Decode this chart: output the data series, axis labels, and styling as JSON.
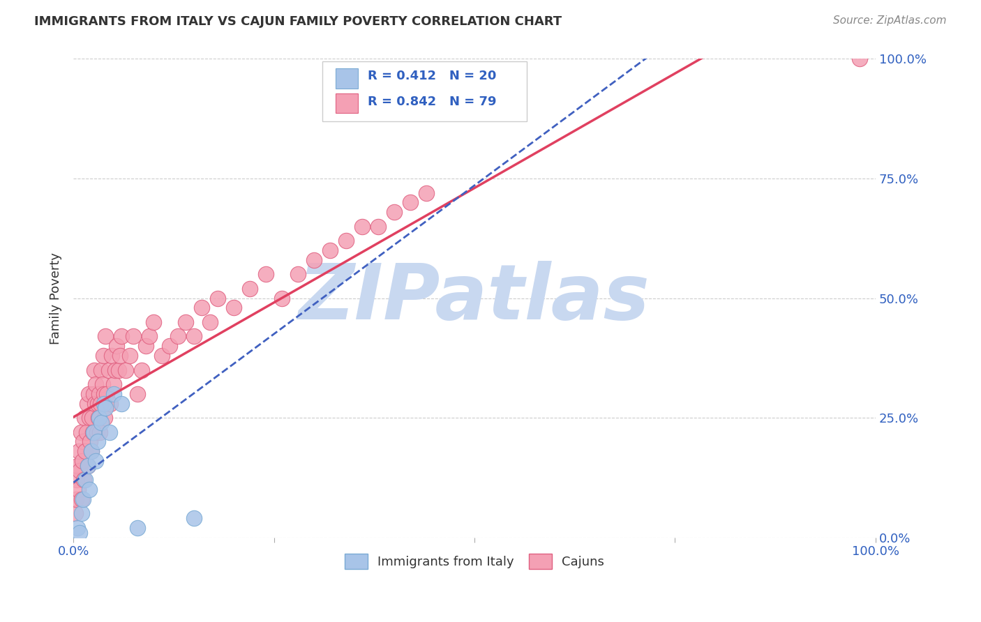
{
  "title": "IMMIGRANTS FROM ITALY VS CAJUN FAMILY POVERTY CORRELATION CHART",
  "source": "Source: ZipAtlas.com",
  "ylabel": "Family Poverty",
  "xlim": [
    0,
    1
  ],
  "ylim": [
    0,
    1
  ],
  "grid_color": "#cccccc",
  "background_color": "#ffffff",
  "watermark_text": "ZIPatlas",
  "watermark_color": "#c8d8f0",
  "italy_color": "#a8c4e8",
  "italy_edge_color": "#7aaad4",
  "cajun_color": "#f4a0b4",
  "cajun_edge_color": "#e06080",
  "italy_R": 0.412,
  "italy_N": 20,
  "cajun_R": 0.842,
  "cajun_N": 79,
  "italy_line_color": "#4060c0",
  "cajun_line_color": "#e04060",
  "tick_label_color": "#3060c0",
  "title_color": "#333333",
  "source_color": "#888888",
  "legend_border_color": "#cccccc",
  "italy_points_x": [
    0.005,
    0.008,
    0.01,
    0.012,
    0.015,
    0.018,
    0.02,
    0.022,
    0.025,
    0.028,
    0.03,
    0.032,
    0.035,
    0.038,
    0.04,
    0.045,
    0.05,
    0.06,
    0.08,
    0.15
  ],
  "italy_points_y": [
    0.02,
    0.01,
    0.05,
    0.08,
    0.12,
    0.15,
    0.1,
    0.18,
    0.22,
    0.16,
    0.2,
    0.25,
    0.24,
    0.28,
    0.27,
    0.22,
    0.3,
    0.28,
    0.02,
    0.04
  ],
  "cajun_points_x": [
    0.002,
    0.003,
    0.004,
    0.005,
    0.006,
    0.007,
    0.008,
    0.009,
    0.01,
    0.011,
    0.012,
    0.013,
    0.014,
    0.015,
    0.016,
    0.017,
    0.018,
    0.019,
    0.02,
    0.021,
    0.022,
    0.023,
    0.024,
    0.025,
    0.026,
    0.027,
    0.028,
    0.029,
    0.03,
    0.031,
    0.032,
    0.033,
    0.034,
    0.035,
    0.036,
    0.037,
    0.038,
    0.039,
    0.04,
    0.042,
    0.044,
    0.046,
    0.048,
    0.05,
    0.052,
    0.054,
    0.056,
    0.058,
    0.06,
    0.065,
    0.07,
    0.075,
    0.08,
    0.085,
    0.09,
    0.095,
    0.1,
    0.11,
    0.12,
    0.13,
    0.14,
    0.15,
    0.16,
    0.17,
    0.18,
    0.2,
    0.22,
    0.24,
    0.26,
    0.28,
    0.3,
    0.32,
    0.34,
    0.36,
    0.38,
    0.4,
    0.42,
    0.44,
    0.98
  ],
  "cajun_points_y": [
    0.05,
    0.08,
    0.12,
    0.15,
    0.1,
    0.18,
    0.14,
    0.22,
    0.08,
    0.16,
    0.2,
    0.12,
    0.25,
    0.18,
    0.22,
    0.28,
    0.15,
    0.3,
    0.25,
    0.2,
    0.18,
    0.25,
    0.22,
    0.3,
    0.35,
    0.28,
    0.32,
    0.22,
    0.28,
    0.25,
    0.3,
    0.22,
    0.28,
    0.35,
    0.32,
    0.38,
    0.3,
    0.25,
    0.42,
    0.3,
    0.35,
    0.28,
    0.38,
    0.32,
    0.35,
    0.4,
    0.35,
    0.38,
    0.42,
    0.35,
    0.38,
    0.42,
    0.3,
    0.35,
    0.4,
    0.42,
    0.45,
    0.38,
    0.4,
    0.42,
    0.45,
    0.42,
    0.48,
    0.45,
    0.5,
    0.48,
    0.52,
    0.55,
    0.5,
    0.55,
    0.58,
    0.6,
    0.62,
    0.65,
    0.65,
    0.68,
    0.7,
    0.72,
    1.0
  ]
}
